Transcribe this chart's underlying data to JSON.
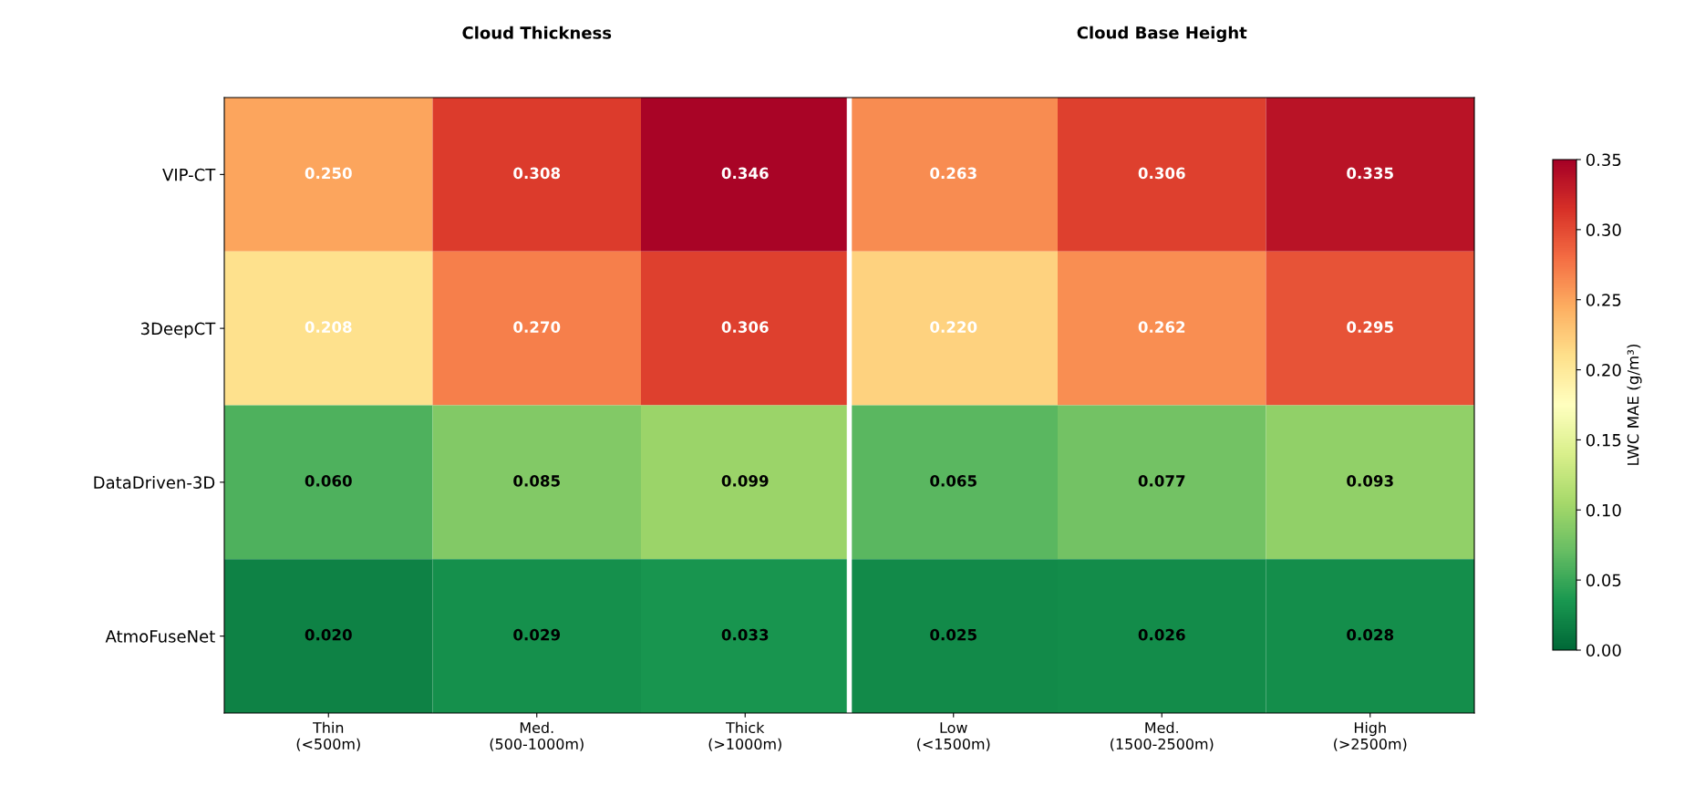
{
  "chart_data": {
    "type": "heatmap",
    "annotations": [
      "Cloud Thickness",
      "Cloud Base Height"
    ],
    "categories": [
      "Thin\n(<500m)",
      "Med.\n(500-1000m)",
      "Thick\n(>1000m)",
      "Low\n(<1500m)",
      "Med.\n(1500-2500m)",
      "High\n(>2500m)"
    ],
    "y_categories": [
      "VIP-CT",
      "3DeepCT",
      "DataDriven-3D",
      "AtmoFuseNet"
    ],
    "cells": [
      [
        0.25,
        0.308,
        0.346,
        0.263,
        0.306,
        0.335
      ],
      [
        0.208,
        0.27,
        0.306,
        0.22,
        0.262,
        0.295
      ],
      [
        0.06,
        0.085,
        0.099,
        0.065,
        0.077,
        0.093
      ],
      [
        0.02,
        0.029,
        0.033,
        0.025,
        0.026,
        0.028
      ]
    ],
    "cell_labels": [
      [
        "0.250",
        "0.308",
        "0.346",
        "0.263",
        "0.306",
        "0.335"
      ],
      [
        "0.208",
        "0.270",
        "0.306",
        "0.220",
        "0.262",
        "0.295"
      ],
      [
        "0.060",
        "0.085",
        "0.099",
        "0.065",
        "0.077",
        "0.093"
      ],
      [
        "0.020",
        "0.029",
        "0.033",
        "0.025",
        "0.026",
        "0.028"
      ]
    ],
    "clim": [
      0,
      0.35
    ],
    "cticks": [
      {
        "value": 0,
        "label": "0.00"
      },
      0.05,
      {
        "value": 0.1,
        "label": "0.10"
      },
      0.15,
      {
        "value": 0.2,
        "label": "0.20"
      },
      0.25,
      {
        "value": 0.3,
        "label": "0.30"
      },
      0.35
    ],
    "clabel": "LWC MAE (g/m³)",
    "data_labels": true
  }
}
